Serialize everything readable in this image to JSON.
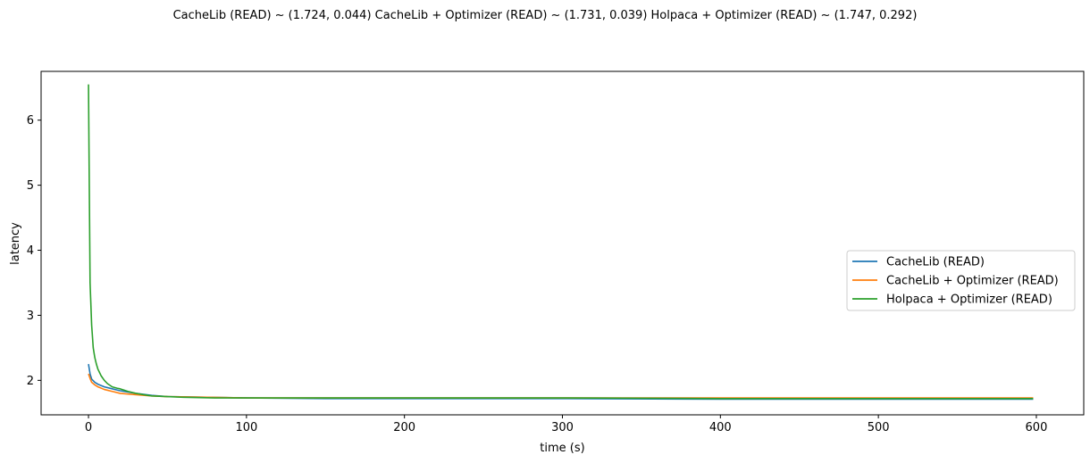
{
  "chart_data": {
    "type": "line",
    "title": "CacheLib (READ) ~ (1.724, 0.044)   CacheLib + Optimizer (READ) ~ (1.731, 0.039)   Holpaca + Optimizer (READ) ~ (1.747, 0.292)",
    "xlabel": "time (s)",
    "ylabel": "latency",
    "xlim": [
      -30,
      630
    ],
    "ylim": [
      1.47,
      6.75
    ],
    "xticks": [
      0,
      100,
      200,
      300,
      400,
      500,
      600
    ],
    "yticks": [
      2,
      3,
      4,
      5,
      6
    ],
    "xtick_labels": [
      "0",
      "100",
      "200",
      "300",
      "400",
      "500",
      "600"
    ],
    "ytick_labels": [
      "2",
      "3",
      "4",
      "5",
      "6"
    ],
    "grid": false,
    "legend_position": "center-right",
    "series": [
      {
        "name": "CacheLib (READ)",
        "color": "#1f77b4",
        "x": [
          0,
          1,
          2,
          4,
          6,
          10,
          15,
          20,
          30,
          40,
          50,
          75,
          100,
          150,
          200,
          300,
          400,
          500,
          598
        ],
        "y": [
          2.25,
          2.1,
          2.02,
          1.97,
          1.94,
          1.9,
          1.87,
          1.84,
          1.8,
          1.77,
          1.75,
          1.74,
          1.73,
          1.72,
          1.72,
          1.72,
          1.71,
          1.71,
          1.71
        ]
      },
      {
        "name": "CacheLib + Optimizer (READ)",
        "color": "#ff7f0e",
        "x": [
          0,
          1,
          2,
          4,
          6,
          10,
          15,
          20,
          30,
          40,
          50,
          75,
          100,
          150,
          200,
          300,
          400,
          500,
          598
        ],
        "y": [
          2.1,
          2.03,
          1.97,
          1.93,
          1.9,
          1.86,
          1.83,
          1.8,
          1.78,
          1.76,
          1.75,
          1.74,
          1.73,
          1.73,
          1.73,
          1.73,
          1.73,
          1.73,
          1.73
        ]
      },
      {
        "name": "Holpaca + Optimizer (READ)",
        "color": "#2ca02c",
        "x": [
          0,
          0.5,
          1,
          2,
          3,
          4,
          5,
          6,
          8,
          10,
          12,
          15,
          18,
          20,
          25,
          30,
          35,
          40,
          50,
          60,
          80,
          100,
          150,
          200,
          300,
          400,
          500,
          598
        ],
        "y": [
          6.55,
          5.0,
          3.5,
          2.85,
          2.5,
          2.35,
          2.25,
          2.17,
          2.07,
          2.0,
          1.95,
          1.9,
          1.88,
          1.87,
          1.83,
          1.8,
          1.78,
          1.76,
          1.75,
          1.74,
          1.73,
          1.73,
          1.73,
          1.73,
          1.73,
          1.72,
          1.72,
          1.72
        ]
      }
    ]
  }
}
